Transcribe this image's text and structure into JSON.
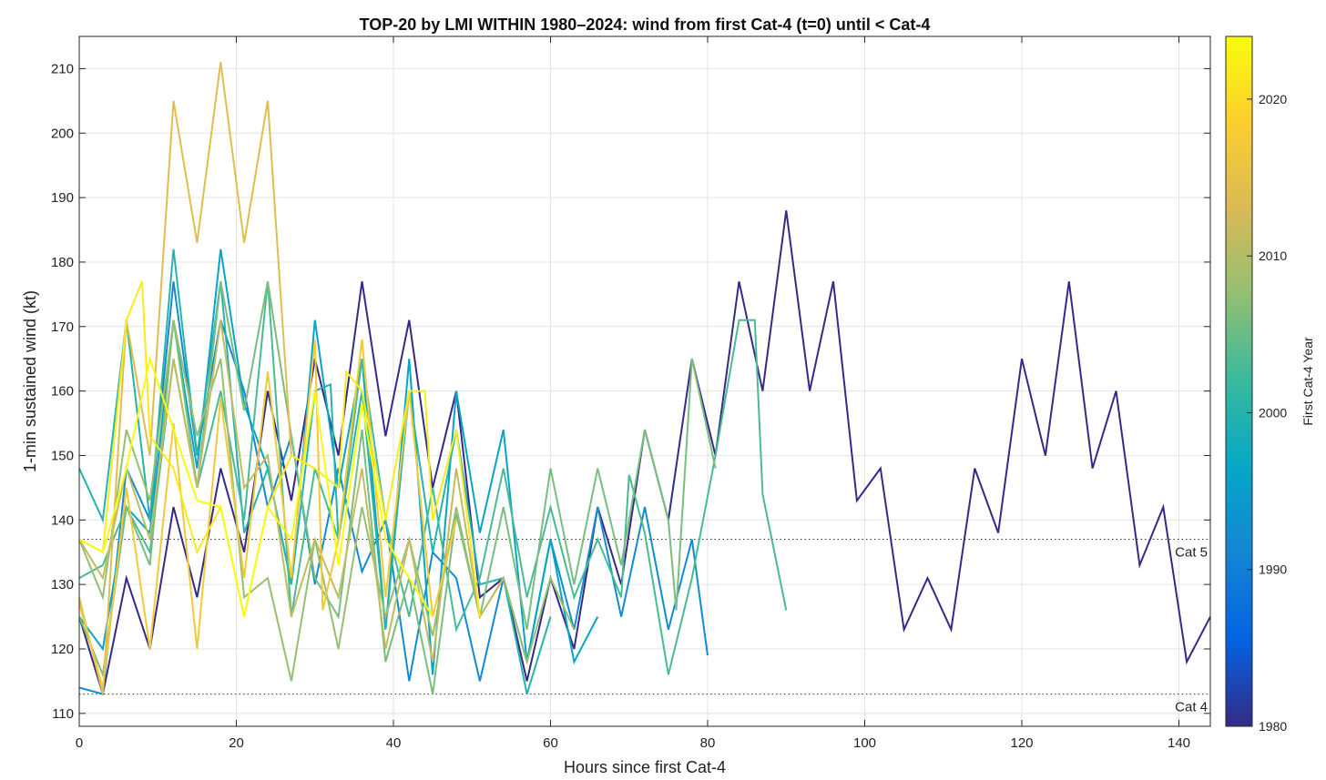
{
  "chart_data": {
    "type": "line",
    "title": "TOP-20 by LMI WITHIN 1980–2024: wind from first Cat-4 (t=0) until < Cat-4",
    "xlabel": "Hours since first Cat-4",
    "ylabel": "1-min sustained wind (kt)",
    "xlim": [
      0,
      144
    ],
    "ylim": [
      108,
      215
    ],
    "xticks": [
      0,
      20,
      40,
      60,
      80,
      100,
      120,
      140
    ],
    "yticks": [
      110,
      120,
      130,
      140,
      150,
      160,
      170,
      180,
      190,
      200,
      210
    ],
    "grid": true,
    "colorbar": {
      "label": "First Cat-4 Year",
      "min": 1980,
      "max": 2024,
      "ticks": [
        1980,
        1990,
        2000,
        2010,
        2020
      ],
      "colors": [
        "#352a87",
        "#0363e1",
        "#1485d4",
        "#06a7c6",
        "#38b99e",
        "#92bf73",
        "#d9ba56",
        "#fcce2e",
        "#f9fb0e"
      ]
    },
    "reference_lines": [
      {
        "label": "Cat 5",
        "y": 137
      },
      {
        "label": "Cat 4",
        "y": 113
      }
    ],
    "series": [
      {
        "name": "1980",
        "year": 1980,
        "x": [
          0,
          3,
          6,
          9,
          12,
          15,
          18,
          21,
          24,
          27,
          30,
          33,
          36,
          39,
          42,
          45,
          48,
          51,
          54,
          57,
          60,
          63,
          66,
          69,
          72,
          75,
          78,
          81,
          84,
          87,
          90,
          93,
          96,
          99,
          102,
          105,
          108,
          111,
          114,
          117,
          120,
          123,
          126,
          129,
          132,
          135,
          138,
          141,
          144
        ],
        "y": [
          125,
          113,
          131,
          120,
          142,
          128,
          148,
          135,
          160,
          143,
          165,
          150,
          177,
          153,
          171,
          145,
          160,
          128,
          131,
          115,
          131,
          120,
          142,
          130,
          154,
          140,
          165,
          150,
          177,
          160,
          188,
          160,
          177,
          143,
          148,
          123,
          131,
          123,
          148,
          138,
          165,
          150,
          177,
          148,
          160,
          133,
          142,
          118,
          125
        ]
      },
      {
        "name": "1992",
        "year": 1992,
        "x": [
          0,
          3,
          6,
          9,
          12,
          15,
          18,
          21,
          24,
          27,
          30,
          33,
          36,
          39,
          42,
          45,
          48,
          51,
          54,
          57,
          60,
          63,
          66,
          69,
          72,
          75,
          78,
          80
        ],
        "y": [
          114,
          113,
          148,
          140,
          177,
          150,
          171,
          160,
          142,
          153,
          130,
          148,
          132,
          140,
          115,
          135,
          131,
          115,
          131,
          118,
          137,
          123,
          142,
          125,
          142,
          123,
          137,
          119
        ]
      },
      {
        "name": "1996",
        "year": 1996,
        "x": [
          0,
          3,
          6,
          9,
          12,
          15,
          18,
          21,
          24,
          27,
          30,
          33,
          36,
          39,
          42,
          45,
          48,
          51,
          54,
          57,
          60,
          63,
          66
        ],
        "y": [
          125,
          120,
          142,
          138,
          171,
          148,
          182,
          158,
          148,
          130,
          171,
          145,
          165,
          123,
          165,
          116,
          160,
          138,
          154,
          118,
          137,
          118,
          125
        ]
      },
      {
        "name": "2000",
        "year": 2000,
        "x": [
          0,
          3,
          6,
          9,
          12,
          15,
          18,
          21,
          24,
          27,
          30,
          32,
          33,
          36,
          39,
          42,
          45,
          48,
          51,
          54,
          57,
          60
        ],
        "y": [
          148,
          140,
          171,
          140,
          182,
          150,
          177,
          138,
          148,
          130,
          160,
          161,
          137,
          160,
          123,
          160,
          135,
          154,
          130,
          131,
          113,
          125
        ]
      },
      {
        "name": "2003",
        "year": 2003,
        "x": [
          0,
          3,
          6,
          9,
          12,
          15,
          18,
          21,
          24,
          27,
          30,
          33,
          36,
          39,
          42,
          45,
          48,
          51,
          54,
          57,
          60,
          63,
          66,
          69,
          70,
          72,
          75,
          78,
          81,
          84,
          86,
          87,
          90
        ],
        "y": [
          131,
          133,
          142,
          135,
          165,
          145,
          160,
          140,
          177,
          125,
          148,
          137,
          165,
          140,
          125,
          145,
          123,
          131,
          148,
          128,
          142,
          128,
          137,
          128,
          147,
          138,
          116,
          131,
          150,
          171,
          171,
          144,
          126
        ]
      },
      {
        "name": "2006",
        "year": 2006,
        "x": [
          0,
          3,
          6,
          9,
          12,
          15,
          18,
          21,
          24,
          27,
          30,
          33,
          36,
          39,
          42,
          45,
          48,
          51,
          54,
          57,
          60,
          63,
          66,
          69,
          72,
          75,
          76,
          78,
          81
        ],
        "y": [
          125,
          116,
          142,
          133,
          171,
          145,
          177,
          157,
          177,
          153,
          131,
          125,
          154,
          118,
          131,
          113,
          141,
          125,
          142,
          123,
          148,
          130,
          148,
          133,
          154,
          140,
          126,
          165,
          148
        ]
      },
      {
        "name": "2008",
        "year": 2008,
        "x": [
          0,
          3,
          6,
          9,
          12,
          15,
          18,
          21,
          24,
          27,
          30,
          33,
          36,
          39,
          42,
          45,
          48,
          51,
          54,
          57,
          60,
          63
        ],
        "y": [
          137,
          128,
          154,
          143,
          171,
          153,
          165,
          128,
          131,
          115,
          137,
          120,
          142,
          125,
          137,
          122,
          142,
          125,
          131,
          118,
          131,
          123
        ]
      },
      {
        "name": "2011",
        "year": 2011,
        "x": [
          0,
          3,
          6,
          9,
          12,
          15,
          18,
          21,
          24,
          27,
          30,
          33,
          36,
          39,
          42,
          45,
          48,
          51,
          54
        ],
        "y": [
          137,
          131,
          148,
          137,
          165,
          145,
          171,
          145,
          150,
          125,
          137,
          128,
          148,
          120,
          137,
          118,
          148,
          125,
          131
        ]
      },
      {
        "name": "2014",
        "year": 2014,
        "x": [
          0,
          3,
          6,
          9,
          12,
          15,
          18,
          21,
          24,
          27
        ],
        "y": [
          128,
          113,
          171,
          150,
          205,
          183,
          211,
          183,
          205,
          150
        ]
      },
      {
        "name": "2017",
        "year": 2017,
        "x": [
          0,
          3,
          6,
          9,
          12,
          15,
          18,
          21,
          24,
          27,
          30,
          31,
          33,
          36,
          39,
          42,
          45,
          48
        ],
        "y": [
          127,
          114,
          145,
          120,
          155,
          120,
          159,
          131,
          163,
          131,
          168,
          126,
          137,
          168,
          128,
          160,
          125,
          140
        ]
      },
      {
        "name": "2022",
        "year": 2022,
        "x": [
          0,
          3,
          6,
          8,
          9,
          12,
          15,
          18,
          21,
          24,
          27,
          30,
          33,
          34,
          36,
          39,
          42,
          44,
          45,
          48,
          51
        ],
        "y": [
          137,
          135,
          171,
          177,
          153,
          148,
          135,
          142,
          125,
          142,
          150,
          148,
          145,
          163,
          160,
          140,
          160,
          160,
          140,
          154,
          125
        ]
      },
      {
        "name": "2024",
        "year": 2024,
        "x": [
          0,
          3,
          6,
          9,
          12,
          15,
          18,
          21,
          24,
          27,
          30,
          33,
          36,
          39,
          42,
          45
        ],
        "y": [
          137,
          135,
          148,
          165,
          154,
          143,
          142,
          125,
          142,
          137,
          160,
          133,
          158,
          137,
          131,
          125
        ]
      }
    ]
  }
}
